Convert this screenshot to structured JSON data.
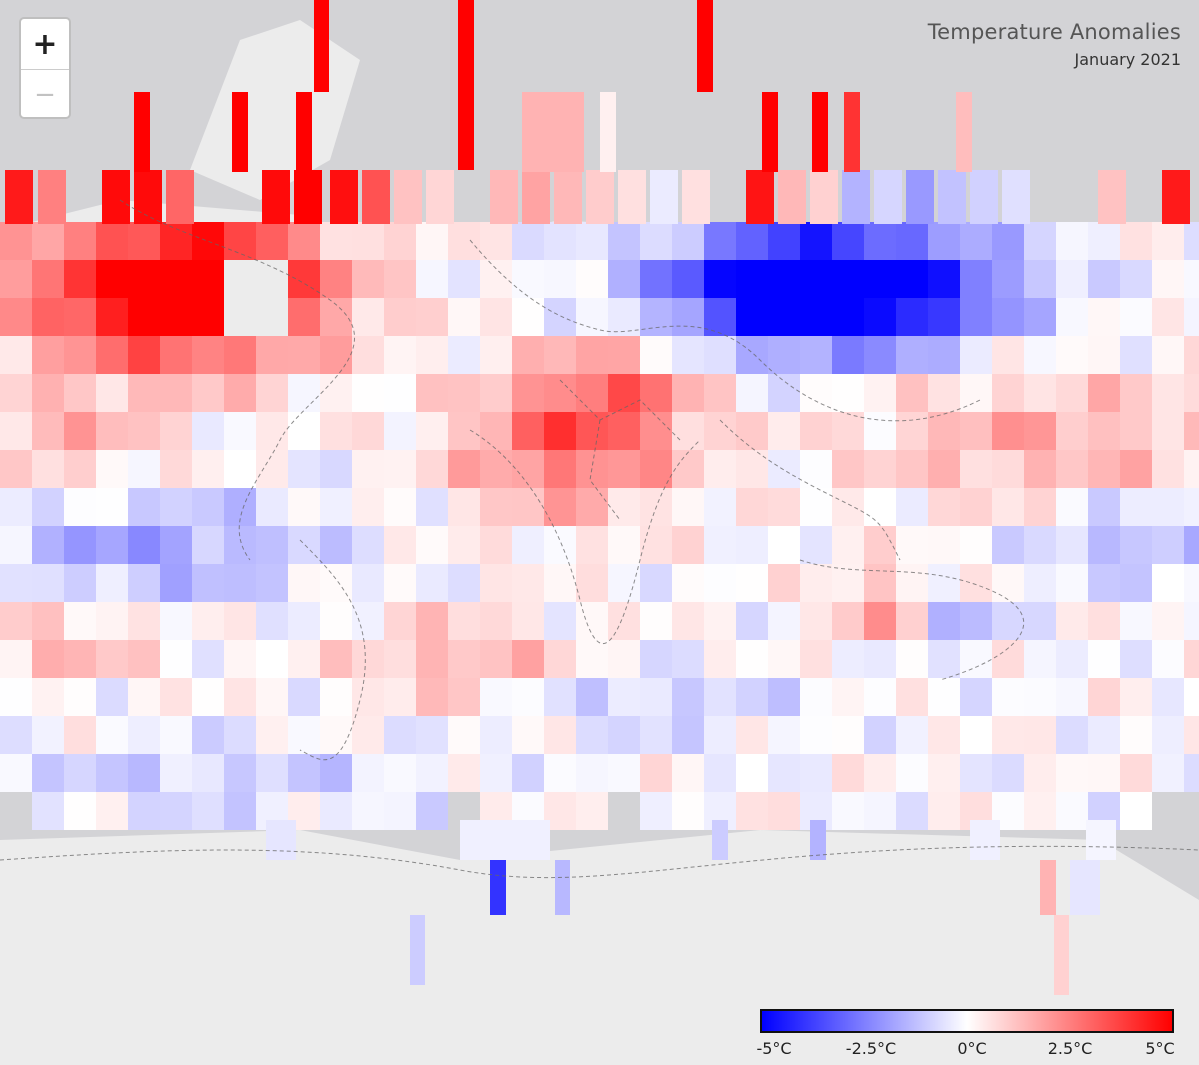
{
  "title": "Temperature Anomalies",
  "subtitle": "January 2021",
  "zoom": {
    "in_label": "+",
    "out_label": "−"
  },
  "legend": {
    "labels": [
      "-5°C",
      "-2.5°C",
      "0°C",
      "2.5°C",
      "5°C"
    ],
    "min": -5,
    "max": 5,
    "colors": {
      "cold": "#0000ff",
      "neutral": "#ffffff",
      "warm": "#ff0000"
    }
  },
  "colors": {
    "background": "#d3d3d6",
    "land": "#ececec",
    "border": "#666666"
  }
}
